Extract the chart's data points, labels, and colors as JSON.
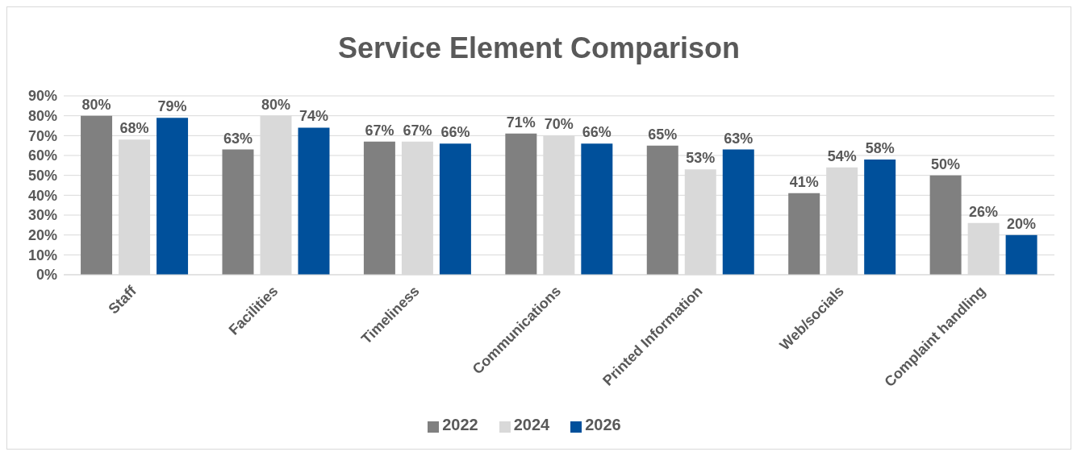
{
  "chart_data": {
    "type": "bar",
    "title": "Service Element Comparison",
    "categories": [
      "Staff",
      "Facilities",
      "Timeliness",
      "Communications",
      "Printed Information",
      "Web/socials",
      "Complaint handling"
    ],
    "series": [
      {
        "name": "2022",
        "color": "#808080",
        "values": [
          80,
          63,
          67,
          71,
          65,
          41,
          50
        ],
        "value_labels": [
          "80%",
          "63%",
          "67%",
          "71%",
          "65%",
          "41%",
          "50%"
        ]
      },
      {
        "name": "2024",
        "color": "#d9d9d9",
        "values": [
          68,
          80,
          67,
          70,
          53,
          54,
          26
        ],
        "value_labels": [
          "68%",
          "80%",
          "67%",
          "70%",
          "53%",
          "54%",
          "26%"
        ]
      },
      {
        "name": "2026",
        "color": "#00509b",
        "values": [
          79,
          74,
          66,
          66,
          63,
          58,
          20
        ],
        "value_labels": [
          "79%",
          "74%",
          "66%",
          "66%",
          "63%",
          "58%",
          "20%"
        ]
      }
    ],
    "ylim": [
      0,
      90
    ],
    "yticks": [
      {
        "value": 0,
        "label": "0%"
      },
      {
        "value": 10,
        "label": "10%"
      },
      {
        "value": 20,
        "label": "20%"
      },
      {
        "value": 30,
        "label": "30%"
      },
      {
        "value": 40,
        "label": "40%"
      },
      {
        "value": 50,
        "label": "50%"
      },
      {
        "value": 60,
        "label": "60%"
      },
      {
        "value": 70,
        "label": "70%"
      },
      {
        "value": 80,
        "label": "80%"
      },
      {
        "value": 90,
        "label": "90%"
      }
    ],
    "grid": "y",
    "legend": "bottom"
  }
}
